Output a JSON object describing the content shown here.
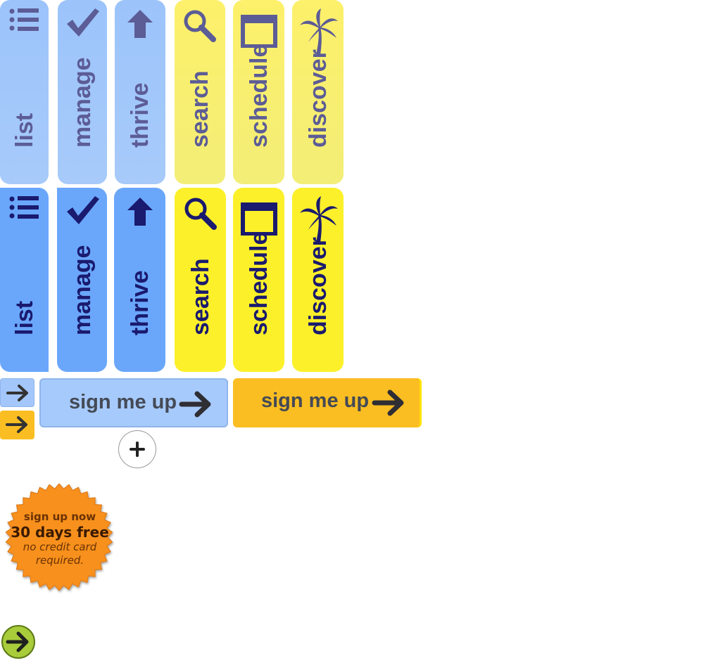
{
  "tabs_row1": [
    {
      "label": "list",
      "icon": "list-icon"
    },
    {
      "label": "manage",
      "icon": "checkmark-icon"
    },
    {
      "label": "thrive",
      "icon": "up-arrow-icon"
    },
    {
      "label": "search",
      "icon": "search-icon"
    },
    {
      "label": "schedule",
      "icon": "window-icon"
    },
    {
      "label": "discover",
      "icon": "palm-tree-icon"
    }
  ],
  "tabs_row2": [
    {
      "label": "list",
      "icon": "list-icon"
    },
    {
      "label": "manage",
      "icon": "checkmark-icon"
    },
    {
      "label": "thrive",
      "icon": "up-arrow-icon"
    },
    {
      "label": "search",
      "icon": "search-icon"
    },
    {
      "label": "schedule",
      "icon": "window-icon"
    },
    {
      "label": "discover",
      "icon": "palm-tree-icon"
    }
  ],
  "signup": {
    "blue_label": "sign me up",
    "yellow_label": "sign me up"
  },
  "badge": {
    "line1": "sign up now",
    "line2": "30 days free",
    "line3": "no credit card",
    "line4": "required."
  },
  "colors": {
    "blue_light": "#a3c7fb",
    "blue_strong": "#6aa7fb",
    "yellow_light": "#f8ef6f",
    "yellow_strong": "#fcf02a",
    "orange": "#fbbe22",
    "badge_orange": "#f7901e",
    "go_green": "#a8cc3a"
  }
}
